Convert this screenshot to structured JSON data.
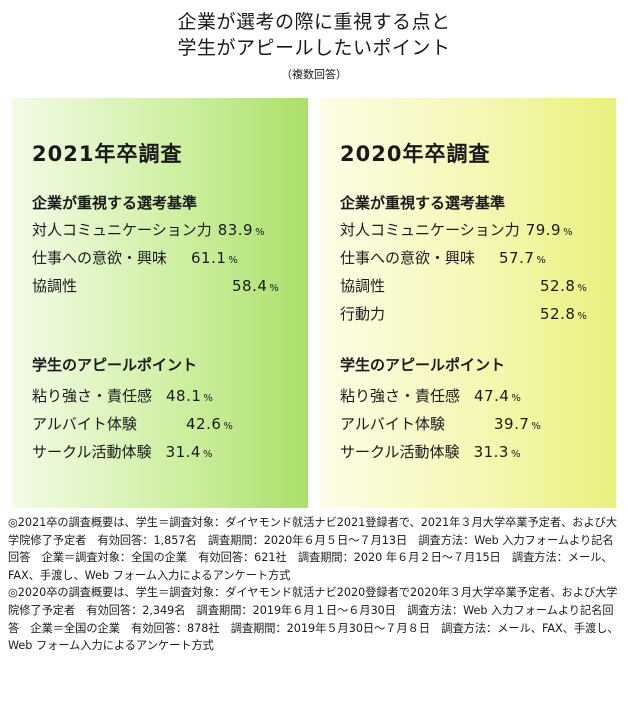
{
  "header": {
    "line1": "企業が選考の際に重視する点と",
    "line2": "学生がアピールしたいポイント",
    "subtitle": "（複数回答）"
  },
  "panels": [
    {
      "title": "2021年卒調査",
      "company_heading": "企業が重視する選考基準",
      "company_items": [
        {
          "label": "対人コミュニケーション力",
          "value": "83.9",
          "unit": "%"
        },
        {
          "label": "仕事への意欲・興味",
          "value": "61.1",
          "unit": "%"
        },
        {
          "label": "協調性",
          "value": "58.4",
          "unit": "%"
        }
      ],
      "student_heading": "学生のアピールポイント",
      "student_items": [
        {
          "label": "粘り強さ・責任感",
          "value": "48.1",
          "unit": "%"
        },
        {
          "label": "アルバイト体験",
          "value": "42.6",
          "unit": "%"
        },
        {
          "label": "サークル活動体験",
          "value": "31.4",
          "unit": "%"
        }
      ]
    },
    {
      "title": "2020年卒調査",
      "company_heading": "企業が重視する選考基準",
      "company_items": [
        {
          "label": "対人コミュニケーション力",
          "value": "79.9",
          "unit": "%"
        },
        {
          "label": "仕事への意欲・興味",
          "value": "57.7",
          "unit": "%"
        },
        {
          "label": "協調性",
          "value": "52.8",
          "unit": "%"
        },
        {
          "label": "行動力",
          "value": "52.8",
          "unit": "%"
        }
      ],
      "student_heading": "学生のアピールポイント",
      "student_items": [
        {
          "label": "粘り強さ・責任感",
          "value": "47.4",
          "unit": "%"
        },
        {
          "label": "アルバイト体験",
          "value": "39.7",
          "unit": "%"
        },
        {
          "label": "サークル活動体験",
          "value": "31.3",
          "unit": "%"
        }
      ]
    }
  ],
  "notes": [
    "◎2021卒の調査概要は、学生＝調査対象：ダイヤモンド就活ナビ2021登録者で、2021年３月大学卒業予定者、および大学院修了予定者　有効回答：1,857名　調査期間：2020年６月５日〜７月13日　調査方法：Web 入力フォームより記名回答　企業＝調査対象：全国の企業　有効回答：621社　調査期間：2020 年６月２日〜７月15日　調査方法：メール、FAX、手渡し、Web フォーム入力によるアンケート方式",
    "◎2020卒の調査概要は、学生＝調査対象：ダイヤモンド就活ナビ2020登録者で2020年３月大学卒業予定者、および大学院修了予定者　有効回答：2,349名　調査期間：2019年６月１日〜６月30日　調査方法：Web 入力フォームより記名回答　企業＝全国の企業　有効回答：878社　調査期間：2019年５月30日〜７月８日　調査方法：メール、FAX、手渡し、Web フォーム入力によるアンケート方式"
  ]
}
